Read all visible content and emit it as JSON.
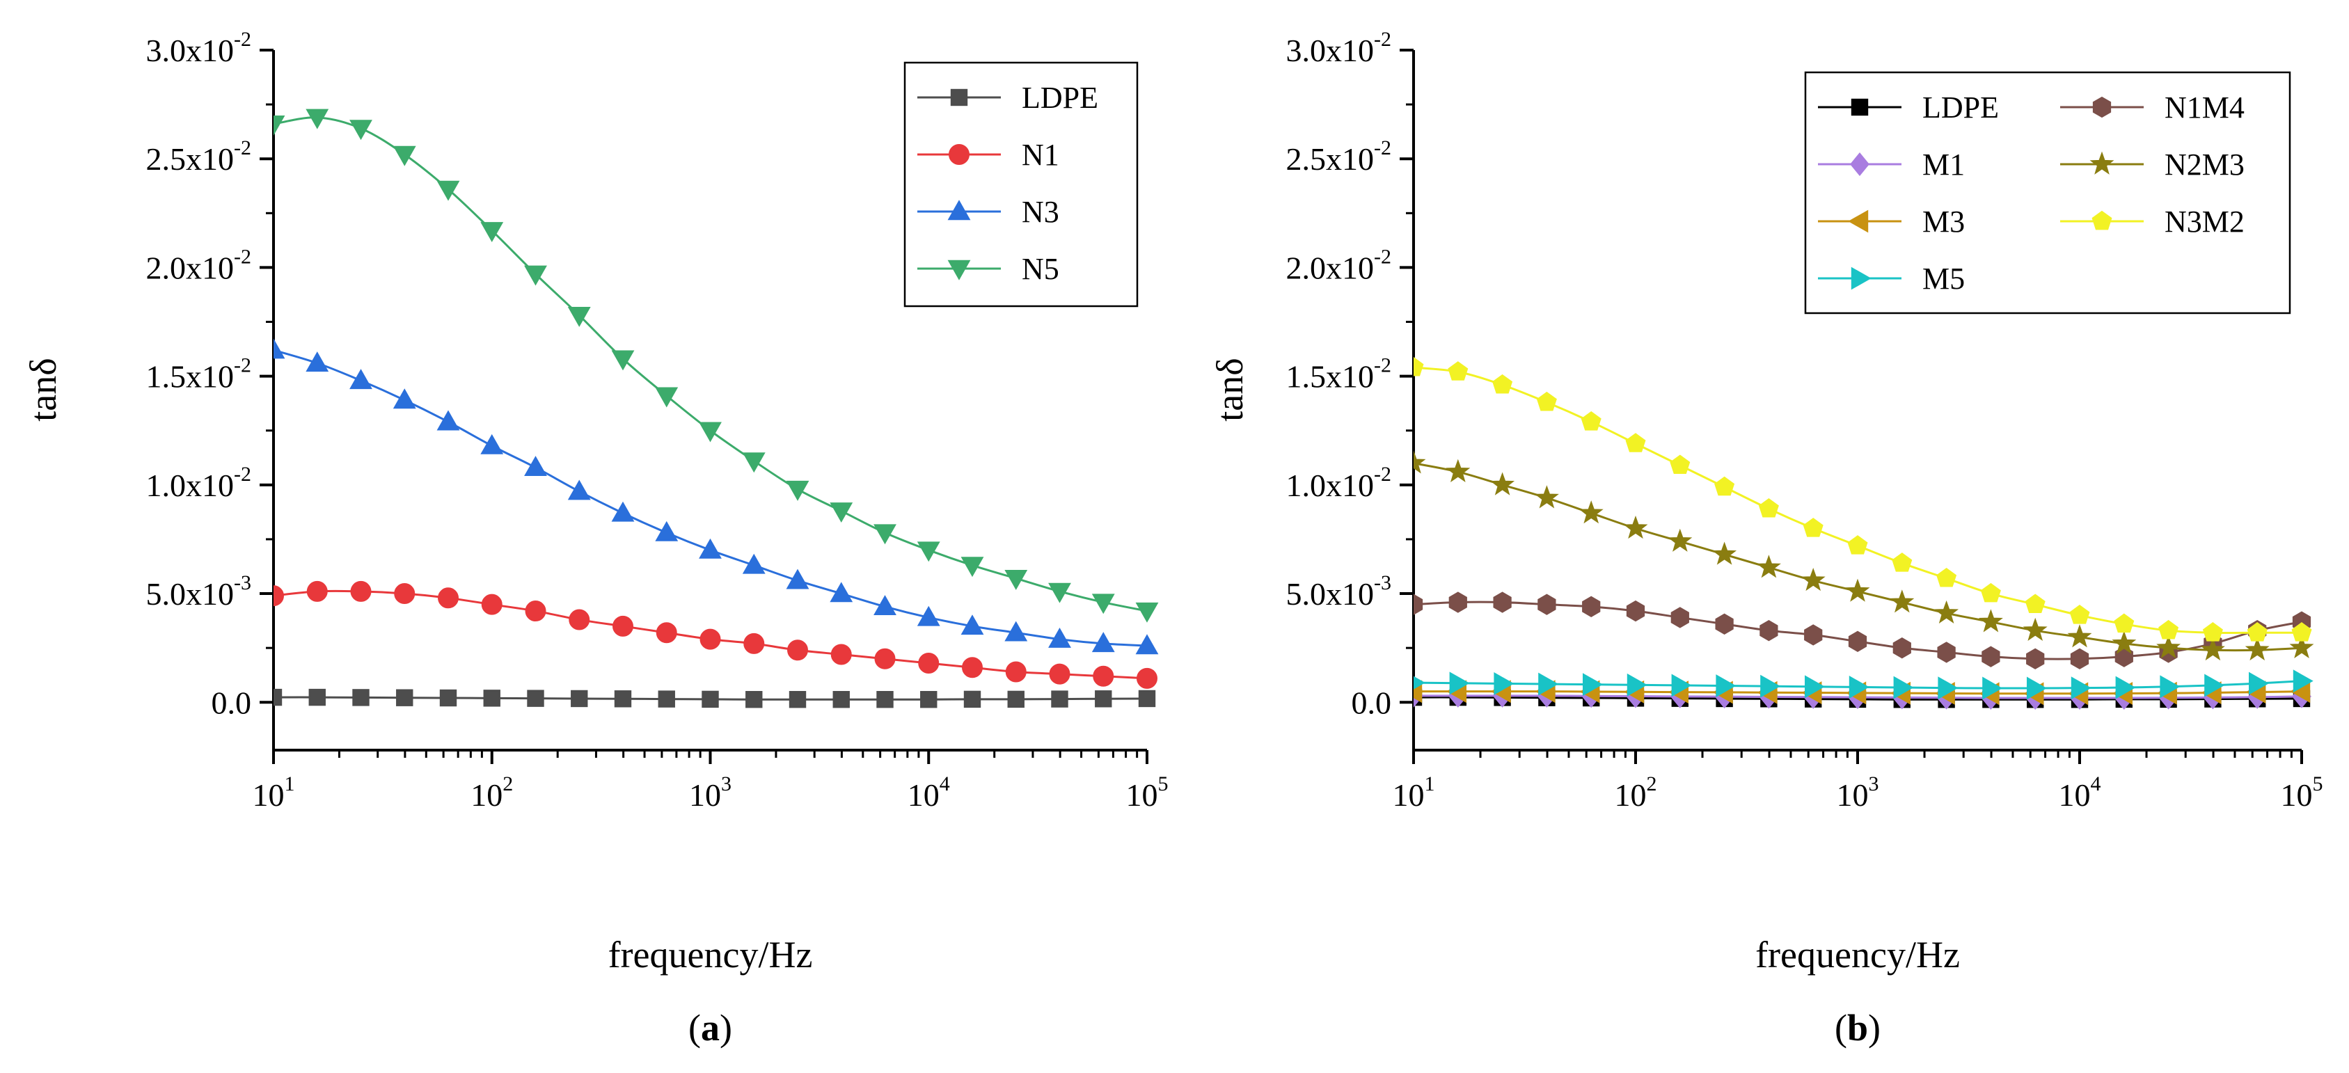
{
  "chart_data": [
    {
      "panel": "a",
      "panel_label_open": "(",
      "panel_label_letter": "a",
      "panel_label_close": ")",
      "type": "line",
      "xscale": "log",
      "xlim": [
        10,
        100000
      ],
      "ylim": [
        -0.0022,
        0.03
      ],
      "xlabel": "frequency/Hz",
      "ylabel": "tanδ",
      "legend_position": "top-right",
      "legend_columns": 1,
      "yticks": [
        {
          "value": 0.0,
          "mant": "0.0",
          "exp": ""
        },
        {
          "value": 0.005,
          "mant": "5.0x10",
          "exp": "-3"
        },
        {
          "value": 0.01,
          "mant": "1.0x10",
          "exp": "-2"
        },
        {
          "value": 0.015,
          "mant": "1.5x10",
          "exp": "-2"
        },
        {
          "value": 0.02,
          "mant": "2.0x10",
          "exp": "-2"
        },
        {
          "value": 0.025,
          "mant": "2.5x10",
          "exp": "-2"
        },
        {
          "value": 0.03,
          "mant": "3.0x10",
          "exp": "-2"
        }
      ],
      "xticks": [
        {
          "value": 10,
          "base": "10",
          "exp": "1"
        },
        {
          "value": 100,
          "base": "10",
          "exp": "2"
        },
        {
          "value": 1000,
          "base": "10",
          "exp": "3"
        },
        {
          "value": 10000,
          "base": "10",
          "exp": "4"
        },
        {
          "value": 100000,
          "base": "10",
          "exp": "5"
        }
      ],
      "x": [
        10,
        15.85,
        25.12,
        39.81,
        63.1,
        100,
        158.5,
        251.2,
        398.1,
        631,
        1000,
        1585,
        2512,
        3981,
        6310,
        10000,
        15850,
        25120,
        39810,
        63100,
        100000
      ],
      "series": [
        {
          "name": "LDPE",
          "color": "#4d4d4d",
          "marker": "square",
          "values": [
            0.00023,
            0.00023,
            0.00022,
            0.00021,
            0.0002,
            0.00019,
            0.00018,
            0.00017,
            0.00016,
            0.00015,
            0.00014,
            0.00013,
            0.00013,
            0.00013,
            0.00013,
            0.00013,
            0.00014,
            0.00014,
            0.00015,
            0.00016,
            0.00017
          ]
        },
        {
          "name": "N1",
          "color": "#e8383b",
          "marker": "circle",
          "values": [
            0.0049,
            0.0051,
            0.0051,
            0.005,
            0.0048,
            0.0045,
            0.0042,
            0.0038,
            0.0035,
            0.0032,
            0.0029,
            0.0027,
            0.0024,
            0.0022,
            0.002,
            0.0018,
            0.0016,
            0.0014,
            0.0013,
            0.0012,
            0.0011
          ]
        },
        {
          "name": "N3",
          "color": "#2a6fdb",
          "marker": "triangle-up",
          "values": [
            0.0162,
            0.0156,
            0.0148,
            0.0139,
            0.0129,
            0.0118,
            0.0108,
            0.0097,
            0.0087,
            0.0078,
            0.007,
            0.0063,
            0.0056,
            0.005,
            0.0044,
            0.0039,
            0.0035,
            0.0032,
            0.0029,
            0.0027,
            0.0026
          ]
        },
        {
          "name": "N5",
          "color": "#3cab6b",
          "marker": "triangle-down",
          "values": [
            0.0266,
            0.0269,
            0.0264,
            0.0252,
            0.0236,
            0.0217,
            0.0197,
            0.0178,
            0.0158,
            0.0141,
            0.0125,
            0.0111,
            0.0098,
            0.0088,
            0.0078,
            0.007,
            0.0063,
            0.0057,
            0.0051,
            0.0046,
            0.0042
          ]
        }
      ]
    },
    {
      "panel": "b",
      "panel_label_open": "(",
      "panel_label_letter": "b",
      "panel_label_close": ")",
      "type": "line",
      "xscale": "log",
      "xlim": [
        10,
        100000
      ],
      "ylim": [
        -0.0022,
        0.03
      ],
      "xlabel": "frequency/Hz",
      "ylabel": "tanδ",
      "legend_position": "top-right",
      "legend_columns": 2,
      "yticks": [
        {
          "value": 0.0,
          "mant": "0.0",
          "exp": ""
        },
        {
          "value": 0.005,
          "mant": "5.0x10",
          "exp": "-3"
        },
        {
          "value": 0.01,
          "mant": "1.0x10",
          "exp": "-2"
        },
        {
          "value": 0.015,
          "mant": "1.5x10",
          "exp": "-2"
        },
        {
          "value": 0.02,
          "mant": "2.0x10",
          "exp": "-2"
        },
        {
          "value": 0.025,
          "mant": "2.5x10",
          "exp": "-2"
        },
        {
          "value": 0.03,
          "mant": "3.0x10",
          "exp": "-2"
        }
      ],
      "xticks": [
        {
          "value": 10,
          "base": "10",
          "exp": "1"
        },
        {
          "value": 100,
          "base": "10",
          "exp": "2"
        },
        {
          "value": 1000,
          "base": "10",
          "exp": "3"
        },
        {
          "value": 10000,
          "base": "10",
          "exp": "4"
        },
        {
          "value": 100000,
          "base": "10",
          "exp": "5"
        }
      ],
      "x": [
        10,
        15.85,
        25.12,
        39.81,
        63.1,
        100,
        158.5,
        251.2,
        398.1,
        631,
        1000,
        1585,
        2512,
        3981,
        6310,
        10000,
        15850,
        25120,
        39810,
        63100,
        100000
      ],
      "series": [
        {
          "name": "LDPE",
          "color": "#000000",
          "marker": "square",
          "values": [
            0.00023,
            0.00023,
            0.00022,
            0.00021,
            0.0002,
            0.00019,
            0.00018,
            0.00017,
            0.00016,
            0.00015,
            0.00014,
            0.00013,
            0.00013,
            0.00013,
            0.00013,
            0.00013,
            0.00014,
            0.00014,
            0.00015,
            0.00016,
            0.00017
          ]
        },
        {
          "name": "M1",
          "color": "#a97de0",
          "marker": "diamond",
          "values": [
            0.0003,
            0.0003,
            0.0003,
            0.0003,
            0.00029,
            0.00028,
            0.00027,
            0.00026,
            0.00025,
            0.00024,
            0.00023,
            0.00022,
            0.00021,
            0.0002,
            0.0002,
            0.0002,
            0.0002,
            0.00021,
            0.00022,
            0.00024,
            0.00027
          ]
        },
        {
          "name": "M3",
          "color": "#c89211",
          "marker": "triangle-left",
          "values": [
            0.0005,
            0.0005,
            0.0005,
            0.0005,
            0.00049,
            0.00048,
            0.00047,
            0.00046,
            0.00045,
            0.00044,
            0.00043,
            0.00042,
            0.00041,
            0.0004,
            0.0004,
            0.0004,
            0.00041,
            0.00042,
            0.00044,
            0.00047,
            0.0005
          ]
        },
        {
          "name": "M5",
          "color": "#19c3c6",
          "marker": "triangle-right",
          "values": [
            0.0009,
            0.00088,
            0.00086,
            0.00084,
            0.00082,
            0.0008,
            0.00078,
            0.00076,
            0.00074,
            0.00072,
            0.0007,
            0.00068,
            0.00066,
            0.00065,
            0.00065,
            0.00066,
            0.00068,
            0.00072,
            0.00078,
            0.00087,
            0.00098
          ]
        },
        {
          "name": "N1M4",
          "color": "#7b4f49",
          "marker": "hexagon",
          "values": [
            0.0045,
            0.0046,
            0.0046,
            0.0045,
            0.0044,
            0.0042,
            0.0039,
            0.0036,
            0.0033,
            0.0031,
            0.0028,
            0.0025,
            0.0023,
            0.0021,
            0.002,
            0.002,
            0.0021,
            0.0023,
            0.0027,
            0.0033,
            0.0037
          ]
        },
        {
          "name": "N2M3",
          "color": "#8a7d10",
          "marker": "star",
          "values": [
            0.011,
            0.0106,
            0.01,
            0.0094,
            0.0087,
            0.008,
            0.0074,
            0.0068,
            0.0062,
            0.0056,
            0.0051,
            0.0046,
            0.0041,
            0.0037,
            0.0033,
            0.003,
            0.0027,
            0.0025,
            0.0024,
            0.0024,
            0.0025
          ]
        },
        {
          "name": "N3M2",
          "color": "#f2f224",
          "marker": "pentagon",
          "values": [
            0.0154,
            0.0152,
            0.0146,
            0.0138,
            0.0129,
            0.0119,
            0.0109,
            0.0099,
            0.0089,
            0.008,
            0.0072,
            0.0064,
            0.0057,
            0.005,
            0.0045,
            0.004,
            0.0036,
            0.0033,
            0.0032,
            0.0032,
            0.0032
          ]
        }
      ]
    }
  ]
}
